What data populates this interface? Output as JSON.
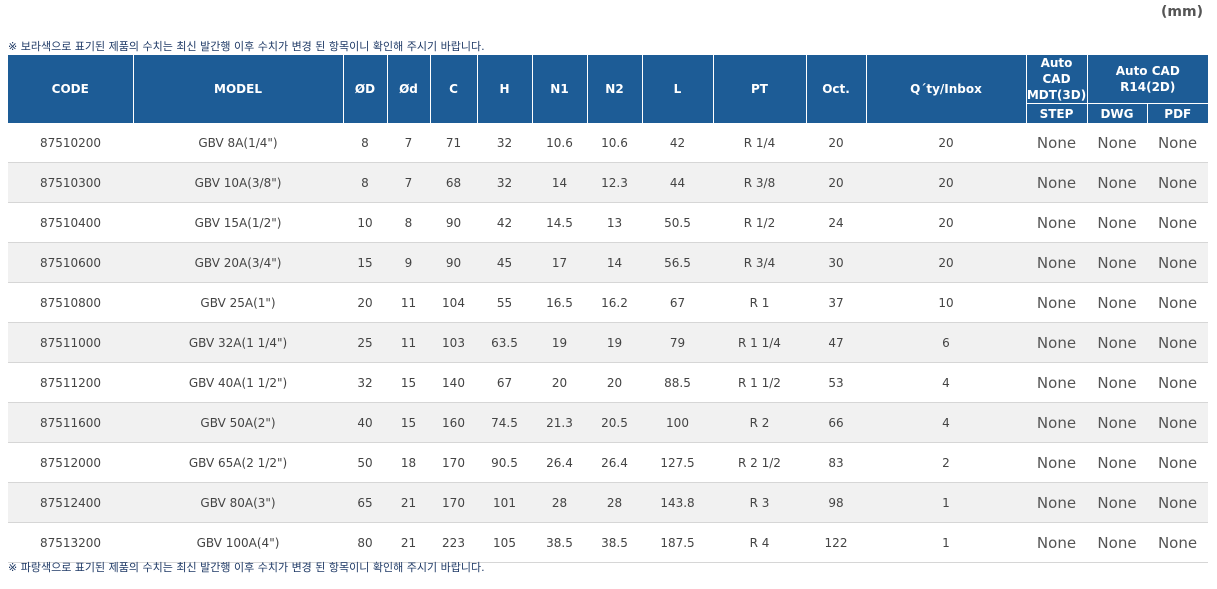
{
  "unit_label": "(mm)",
  "note_top": "※ 보라색으로 표기된 제품의 수치는 최신 발간행 이후 수치가 변경 된 항목이니 확인해 주시기 바랍니다.",
  "note_bottom": "※ 파랑색으로 표기된 제품의 수치는 최신 발간행 이후 수치가 변경 된 항목이니 확인해 주시기 바랍니다.",
  "colors": {
    "header_bg": "#1d5c96",
    "note_text": "#1f3a66",
    "alt_row": "#f1f1f1"
  },
  "headers": {
    "code": "CODE",
    "model": "MODEL",
    "od_big": "ØD",
    "od_small": "Ød",
    "c": "C",
    "h": "H",
    "n1": "N1",
    "n2": "N2",
    "l": "L",
    "pt": "PT",
    "oct": "Oct.",
    "qty": "Q´ty/Inbox",
    "autocad_3d_line1": "Auto CAD",
    "autocad_3d_line2": "MDT(3D)",
    "autocad_2d": "Auto CAD R14(2D)",
    "step": "STEP",
    "dwg": "DWG",
    "pdf": "PDF"
  },
  "rows": [
    {
      "code": "87510200",
      "model": "GBV 8A(1/4\")",
      "od_big": "8",
      "od_small": "7",
      "c": "71",
      "h": "32",
      "n1": "10.6",
      "n2": "10.6",
      "l": "42",
      "pt": "R 1/4",
      "oct": "20",
      "qty": "20",
      "step": "None",
      "dwg": "None",
      "pdf": "None"
    },
    {
      "code": "87510300",
      "model": "GBV 10A(3/8\")",
      "od_big": "8",
      "od_small": "7",
      "c": "68",
      "h": "32",
      "n1": "14",
      "n2": "12.3",
      "l": "44",
      "pt": "R 3/8",
      "oct": "20",
      "qty": "20",
      "step": "None",
      "dwg": "None",
      "pdf": "None"
    },
    {
      "code": "87510400",
      "model": "GBV 15A(1/2\")",
      "od_big": "10",
      "od_small": "8",
      "c": "90",
      "h": "42",
      "n1": "14.5",
      "n2": "13",
      "l": "50.5",
      "pt": "R 1/2",
      "oct": "24",
      "qty": "20",
      "step": "None",
      "dwg": "None",
      "pdf": "None"
    },
    {
      "code": "87510600",
      "model": "GBV 20A(3/4\")",
      "od_big": "15",
      "od_small": "9",
      "c": "90",
      "h": "45",
      "n1": "17",
      "n2": "14",
      "l": "56.5",
      "pt": "R 3/4",
      "oct": "30",
      "qty": "20",
      "step": "None",
      "dwg": "None",
      "pdf": "None"
    },
    {
      "code": "87510800",
      "model": "GBV 25A(1\")",
      "od_big": "20",
      "od_small": "11",
      "c": "104",
      "h": "55",
      "n1": "16.5",
      "n2": "16.2",
      "l": "67",
      "pt": "R 1",
      "oct": "37",
      "qty": "10",
      "step": "None",
      "dwg": "None",
      "pdf": "None"
    },
    {
      "code": "87511000",
      "model": "GBV 32A(1 1/4\")",
      "od_big": "25",
      "od_small": "11",
      "c": "103",
      "h": "63.5",
      "n1": "19",
      "n2": "19",
      "l": "79",
      "pt": "R 1 1/4",
      "oct": "47",
      "qty": "6",
      "step": "None",
      "dwg": "None",
      "pdf": "None"
    },
    {
      "code": "87511200",
      "model": "GBV 40A(1 1/2\")",
      "od_big": "32",
      "od_small": "15",
      "c": "140",
      "h": "67",
      "n1": "20",
      "n2": "20",
      "l": "88.5",
      "pt": "R 1 1/2",
      "oct": "53",
      "qty": "4",
      "step": "None",
      "dwg": "None",
      "pdf": "None"
    },
    {
      "code": "87511600",
      "model": "GBV 50A(2\")",
      "od_big": "40",
      "od_small": "15",
      "c": "160",
      "h": "74.5",
      "n1": "21.3",
      "n2": "20.5",
      "l": "100",
      "pt": "R 2",
      "oct": "66",
      "qty": "4",
      "step": "None",
      "dwg": "None",
      "pdf": "None"
    },
    {
      "code": "87512000",
      "model": "GBV 65A(2 1/2\")",
      "od_big": "50",
      "od_small": "18",
      "c": "170",
      "h": "90.5",
      "n1": "26.4",
      "n2": "26.4",
      "l": "127.5",
      "pt": "R 2 1/2",
      "oct": "83",
      "qty": "2",
      "step": "None",
      "dwg": "None",
      "pdf": "None"
    },
    {
      "code": "87512400",
      "model": "GBV 80A(3\")",
      "od_big": "65",
      "od_small": "21",
      "c": "170",
      "h": "101",
      "n1": "28",
      "n2": "28",
      "l": "143.8",
      "pt": "R 3",
      "oct": "98",
      "qty": "1",
      "step": "None",
      "dwg": "None",
      "pdf": "None"
    },
    {
      "code": "87513200",
      "model": "GBV 100A(4\")",
      "od_big": "80",
      "od_small": "21",
      "c": "223",
      "h": "105",
      "n1": "38.5",
      "n2": "38.5",
      "l": "187.5",
      "pt": "R 4",
      "oct": "122",
      "qty": "1",
      "step": "None",
      "dwg": "None",
      "pdf": "None"
    }
  ]
}
